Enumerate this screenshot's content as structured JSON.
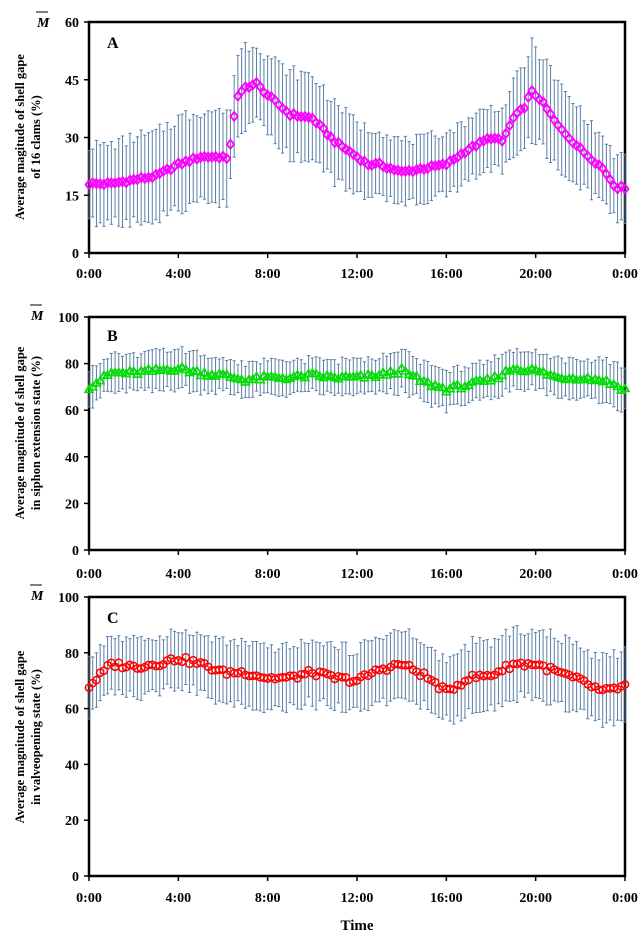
{
  "x_label": "Time",
  "mbar_symbol": "M",
  "chart_data": [
    {
      "panel": "A",
      "type": "scatter",
      "ylabel_lines": [
        "Average magitude of shell gape",
        "of 16 clams (%)"
      ],
      "yticks": [
        0,
        15,
        30,
        45,
        60
      ],
      "ylim": [
        0,
        60
      ],
      "xticks": [
        "0:00",
        "4:00",
        "8:00",
        "12:00",
        "16:00",
        "20:00",
        "0:00"
      ],
      "xlim": [
        0,
        24
      ],
      "marker": "diamond",
      "color": "#ff00ff",
      "errorbar_color": "#5b7fa6",
      "x_hours": [
        0,
        1,
        2,
        3,
        4,
        5,
        6,
        6.2,
        6.3,
        6.6,
        7,
        7.5,
        8,
        9,
        10,
        11,
        12,
        12.5,
        13,
        14,
        15,
        16,
        17,
        18,
        18.5,
        19,
        19.5,
        19.8,
        20.2,
        21,
        22,
        23,
        23.6,
        24
      ],
      "mean": [
        18,
        18,
        19,
        20,
        23,
        25,
        25,
        24,
        27,
        40,
        43,
        44,
        41,
        36,
        35,
        29,
        25,
        23,
        23,
        21,
        22,
        23,
        27,
        30,
        29,
        35,
        38,
        42,
        40,
        33,
        27,
        22,
        17,
        17
      ],
      "error": [
        10,
        10,
        11,
        11,
        12,
        12,
        12,
        11,
        10,
        11,
        11,
        10,
        10,
        11,
        11,
        10,
        9,
        9,
        9,
        8,
        8,
        8,
        8,
        8,
        8,
        9,
        11,
        12,
        12,
        11,
        10,
        8,
        8,
        8
      ]
    },
    {
      "panel": "B",
      "type": "scatter",
      "ylabel_lines": [
        "Average magnitude of shell gape",
        "in siphon extension state (%)"
      ],
      "yticks": [
        0,
        20,
        40,
        60,
        80,
        100
      ],
      "ylim": [
        0,
        100
      ],
      "xticks": [
        "0:00",
        "4:00",
        "8:00",
        "12:00",
        "16:00",
        "20:00",
        "0:00"
      ],
      "xlim": [
        0,
        24
      ],
      "marker": "triangle",
      "color": "#00e000",
      "errorbar_color": "#5b7fa6",
      "x_hours": [
        0,
        1,
        2,
        3,
        4,
        5,
        6,
        7,
        8,
        9,
        10,
        11,
        12,
        13,
        14,
        15,
        16,
        17,
        18,
        19,
        20,
        21,
        22,
        23,
        24
      ],
      "mean": [
        70,
        76,
        76,
        77,
        78,
        76,
        75,
        73,
        74,
        74,
        75,
        74,
        74,
        75,
        77,
        72,
        69,
        71,
        73,
        78,
        77,
        74,
        74,
        73,
        69
      ],
      "error": [
        8,
        8,
        8,
        8,
        8,
        8,
        7,
        7,
        7,
        7,
        7,
        7,
        8,
        8,
        9,
        8,
        8,
        8,
        8,
        8,
        8,
        8,
        8,
        9,
        10
      ]
    },
    {
      "panel": "C",
      "type": "scatter",
      "ylabel_lines": [
        "Average magnitude of shell gape",
        "in valveopening state (%)"
      ],
      "yticks": [
        0,
        20,
        40,
        60,
        80,
        100
      ],
      "ylim": [
        0,
        100
      ],
      "xticks": [
        "0:00",
        "4:00",
        "8:00",
        "12:00",
        "16:00",
        "20:00",
        "0:00"
      ],
      "xlim": [
        0,
        24
      ],
      "marker": "circle",
      "color": "#ff0000",
      "errorbar_color": "#5b7fa6",
      "x_hours": [
        0,
        1,
        2,
        3,
        4,
        5,
        6,
        7,
        8,
        9,
        10,
        11,
        12,
        13,
        14,
        15,
        16,
        17,
        18,
        19,
        20,
        21,
        22,
        23,
        24
      ],
      "mean": [
        68,
        76,
        75,
        76,
        78,
        76,
        73,
        73,
        71,
        71,
        73,
        71,
        70,
        74,
        76,
        72,
        66,
        71,
        72,
        76,
        76,
        73,
        70,
        66,
        68
      ],
      "error": [
        10,
        10,
        10,
        10,
        10,
        10,
        11,
        11,
        11,
        11,
        11,
        11,
        11,
        12,
        12,
        11,
        11,
        12,
        12,
        12,
        12,
        12,
        12,
        12,
        13
      ]
    }
  ]
}
